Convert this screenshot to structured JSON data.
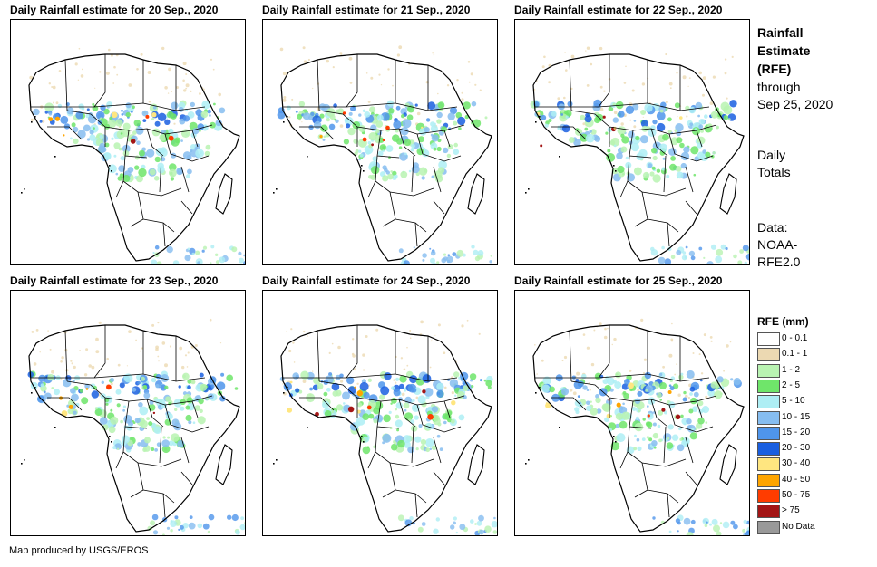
{
  "panels": [
    {
      "title": "Daily Rainfall estimate for 20 Sep., 2020",
      "day": "20"
    },
    {
      "title": "Daily Rainfall estimate for 21 Sep., 2020",
      "day": "21"
    },
    {
      "title": "Daily Rainfall estimate for 22 Sep., 2020",
      "day": "22"
    },
    {
      "title": "Daily Rainfall estimate for 23 Sep., 2020",
      "day": "23"
    },
    {
      "title": "Daily Rainfall estimate for 24 Sep., 2020",
      "day": "24"
    },
    {
      "title": "Daily Rainfall estimate for 25 Sep., 2020",
      "day": "25"
    }
  ],
  "sidebar": {
    "title_line1": "Rainfall",
    "title_line2": "Estimate",
    "title_line3": "(RFE)",
    "through_line1": "through",
    "through_line2": "Sep 25, 2020",
    "daily_line1": "Daily",
    "daily_line2": "Totals",
    "data_line1": "Data:",
    "data_line2": "NOAA-",
    "data_line3": "RFE2.0"
  },
  "legend": {
    "title": "RFE (mm)",
    "items": [
      {
        "label": "0 - 0.1",
        "color": "#ffffff"
      },
      {
        "label": "0.1 - 1",
        "color": "#ecd9b2"
      },
      {
        "label": "1 - 2",
        "color": "#b9f3b2"
      },
      {
        "label": "2 - 5",
        "color": "#6fe56a"
      },
      {
        "label": "5 - 10",
        "color": "#aeeef4"
      },
      {
        "label": "10 - 15",
        "color": "#86bdf0"
      },
      {
        "label": "15 - 20",
        "color": "#4f95eb"
      },
      {
        "label": "20 - 30",
        "color": "#1a5fe0"
      },
      {
        "label": "30 - 40",
        "color": "#ffe680"
      },
      {
        "label": "40 - 50",
        "color": "#ffa500"
      },
      {
        "label": "50 - 75",
        "color": "#ff3c00"
      },
      {
        "label": "> 75",
        "color": "#a31515"
      },
      {
        "label": "No Data",
        "color": "#999999"
      }
    ]
  },
  "footer": {
    "text": "Map produced by USGS/EROS"
  }
}
